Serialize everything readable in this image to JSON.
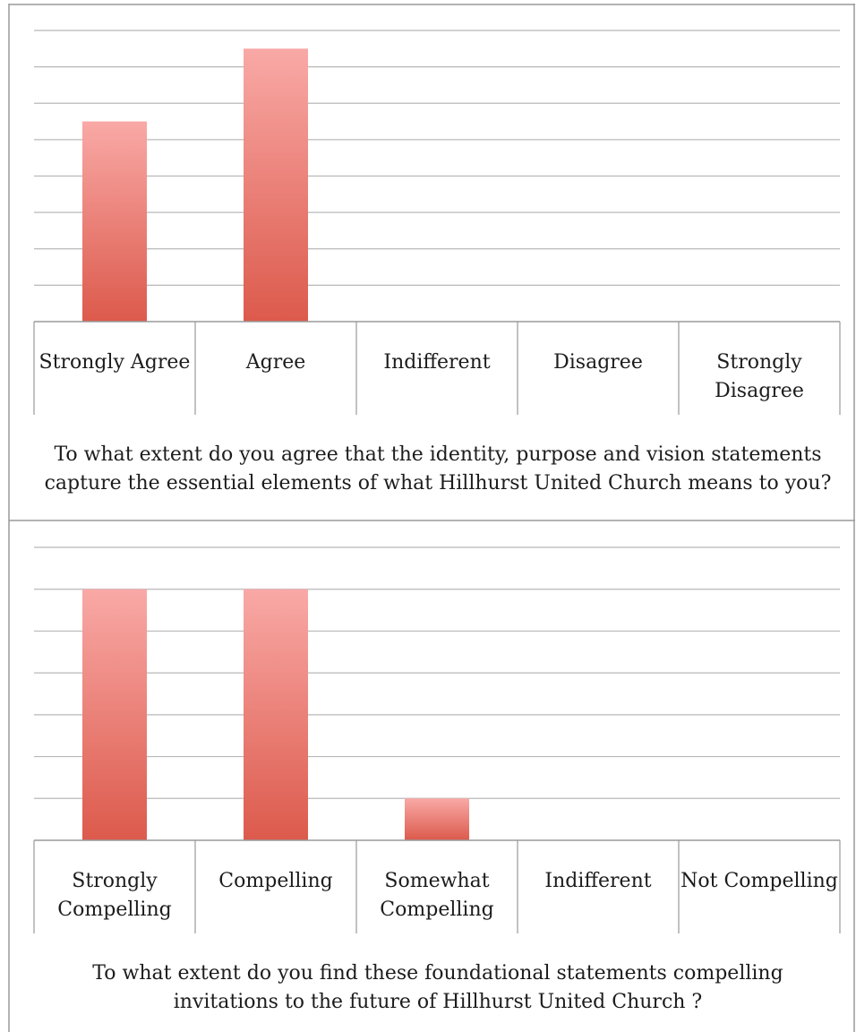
{
  "colors": {
    "bar_top": "#f9a9a6",
    "bar_bottom": "#dc5a4c",
    "grid": "#b8b8b8",
    "axis": "#9a9a9a",
    "border": "#9a9a9a",
    "text": "#1c1c1c"
  },
  "chart_data": [
    {
      "type": "bar",
      "categories": [
        "Strongly Agree",
        "Agree",
        "Indifferent",
        "Disagree",
        "Strongly Disagree"
      ],
      "values": [
        5.5,
        7.5,
        0,
        0,
        0
      ],
      "ylim": [
        0,
        8
      ],
      "grid": true,
      "caption": "To what extent do you agree that the identity, purpose and vision statements capture the essential elements of what Hillhurst United Church means to you?"
    },
    {
      "type": "bar",
      "categories": [
        "Strongly Compelling",
        "Compelling",
        "Somewhat Compelling",
        "Indifferent",
        "Not Compelling"
      ],
      "values": [
        6,
        6,
        1,
        0,
        0
      ],
      "ylim": [
        0,
        7
      ],
      "grid": true,
      "caption": "To what extent do you find these foundational statements compelling invitations to the future of Hillhurst United Church ?"
    }
  ]
}
